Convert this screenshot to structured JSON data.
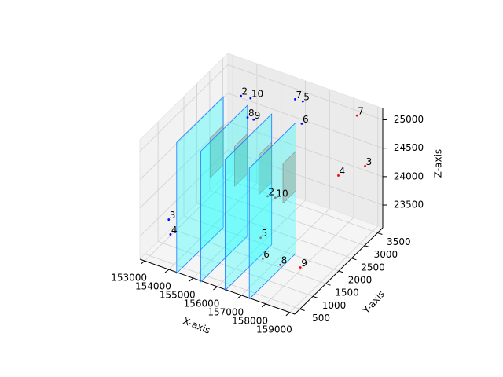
{
  "chart_data": {
    "type": "scatter3d",
    "xlabel": "X-axis",
    "ylabel": "Y-axis",
    "zlabel": "Z-axis",
    "xlim": [
      152800,
      159200
    ],
    "ylim": [
      300,
      3700
    ],
    "zlim": [
      23100,
      25200
    ],
    "xticks": [
      153000,
      154000,
      155000,
      156000,
      157000,
      158000,
      159000
    ],
    "yticks": [
      500,
      1000,
      1500,
      2000,
      2500,
      3000,
      3500
    ],
    "zticks": [
      23500,
      24000,
      24500,
      25000
    ],
    "grid": true,
    "planes": {
      "color": "#00ffff",
      "edge": "#1f77ff",
      "x": [
        154000,
        155000,
        156000,
        157000
      ],
      "ylim": [
        600,
        2400
      ],
      "zlim": [
        22900,
        25200
      ]
    },
    "panels": {
      "color": "#9aa89a",
      "x": [
        154000,
        155000,
        156000,
        157000
      ],
      "ylim": [
        1900,
        2400
      ],
      "zlim": [
        24000,
        24700
      ]
    },
    "series": [
      {
        "color": "blue",
        "labels": [
          "2",
          "10",
          "8",
          "9",
          "7",
          "5",
          "6",
          "3",
          "4"
        ],
        "x": [
          153700,
          154100,
          154340,
          154590,
          155940,
          156260,
          156580,
          153630,
          153700
        ],
        "y": [
          3360,
          3360,
          3020,
          3020,
          3360,
          3360,
          3020,
          640,
          640
        ],
        "z": [
          24740,
          24760,
          24610,
          24610,
          25020,
          25030,
          24840,
          23770,
          23520
        ]
      },
      {
        "color": "red",
        "labels": [
          "7",
          "3",
          "4",
          "8",
          "9"
        ],
        "x": [
          158500,
          159200,
          158820,
          158240,
          159070
        ],
        "y": [
          3360,
          3020,
          2340,
          640,
          640
        ],
        "z": [
          25120,
          24490,
          24570,
          23670,
          23750
        ]
      },
      {
        "color": "gray",
        "labels": [
          "2",
          "10",
          "5",
          "6"
        ],
        "x": [
          156260,
          156580,
          156700,
          157150
        ],
        "y": [
          2000,
          2000,
          1320,
          980
        ],
        "z": [
          23970,
          23990,
          23610,
          23460
        ]
      }
    ]
  }
}
